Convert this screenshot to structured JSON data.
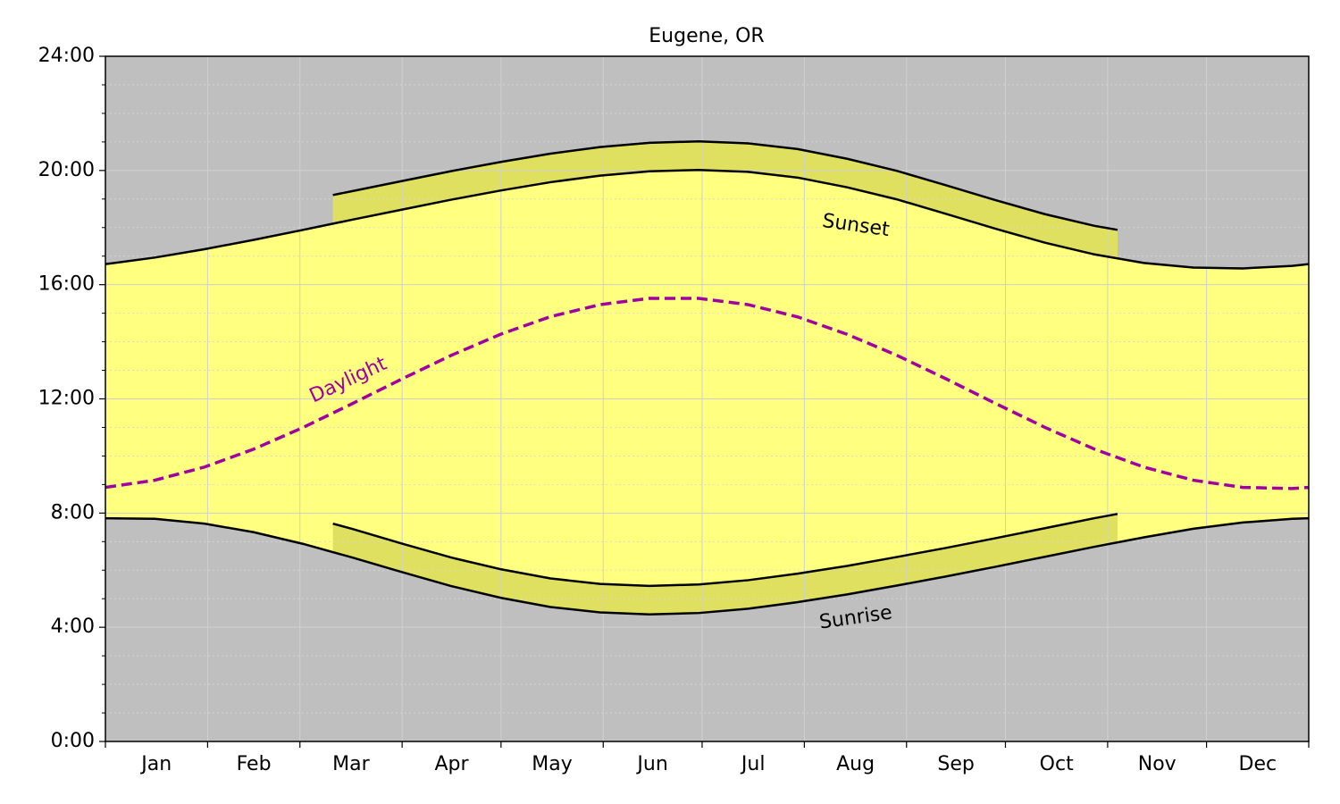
{
  "chart_data": {
    "type": "line",
    "title": "Eugene, OR",
    "x": [
      0,
      15,
      30,
      45,
      60,
      75,
      90,
      105,
      120,
      135,
      150,
      165,
      180,
      195,
      210,
      225,
      240,
      255,
      270,
      285,
      300,
      315,
      330,
      345,
      360,
      365
    ],
    "xlim": [
      0,
      365
    ],
    "xticks": [
      0,
      31,
      59,
      90,
      120,
      151,
      181,
      212,
      243,
      273,
      304,
      334,
      365
    ],
    "x_labels": [
      "Jan",
      "Feb",
      "Mar",
      "Apr",
      "May",
      "Jun",
      "Jul",
      "Aug",
      "Sep",
      "Oct",
      "Nov",
      "Dec"
    ],
    "ylim": [
      0,
      24
    ],
    "yticks": [
      {
        "value": 0,
        "label": "0:00"
      },
      {
        "value": 4,
        "label": "4:00"
      },
      {
        "value": 8,
        "label": "8:00"
      },
      {
        "value": 12,
        "label": "12:00"
      },
      {
        "value": 16,
        "label": "16:00"
      },
      {
        "value": 20,
        "label": "20:00"
      },
      {
        "value": 24,
        "label": "24:00"
      }
    ],
    "yminor_ticks": [
      1,
      2,
      3,
      5,
      6,
      7,
      9,
      10,
      11,
      13,
      14,
      15,
      17,
      18,
      19,
      21,
      22,
      23
    ],
    "grid": true,
    "background": "#bfbfbf",
    "fill_color": "#ffff80",
    "dst_fill_color": "#e0e060",
    "annotations": [
      "Sunset",
      "Sunrise",
      "Daylight"
    ],
    "series": [
      {
        "color": "#000000",
        "values": [
          7.82,
          7.8,
          7.63,
          7.33,
          6.92,
          6.44,
          5.93,
          5.44,
          5.03,
          4.71,
          4.52,
          4.45,
          4.5,
          4.65,
          4.88,
          5.15,
          5.46,
          5.78,
          6.12,
          6.47,
          6.82,
          7.15,
          7.45,
          7.67,
          7.8,
          7.82
        ]
      },
      {
        "color": "#000000",
        "values": [
          16.72,
          16.95,
          17.24,
          17.57,
          17.92,
          18.28,
          18.63,
          18.98,
          19.3,
          19.59,
          19.82,
          19.97,
          20.02,
          19.95,
          19.75,
          19.41,
          18.99,
          18.48,
          17.96,
          17.47,
          17.06,
          16.76,
          16.6,
          16.57,
          16.66,
          16.72
        ]
      },
      {
        "color": "#000000",
        "x": [
          69,
          75,
          90,
          105,
          120,
          135,
          150,
          165,
          180,
          195,
          210,
          225,
          240,
          255,
          270,
          285,
          300,
          307
        ],
        "values": [
          7.63,
          7.44,
          6.93,
          6.44,
          6.03,
          5.71,
          5.52,
          5.45,
          5.5,
          5.65,
          5.88,
          6.15,
          6.46,
          6.78,
          7.12,
          7.47,
          7.82,
          7.97
        ]
      },
      {
        "color": "#000000",
        "x": [
          69,
          75,
          90,
          105,
          120,
          135,
          150,
          165,
          180,
          195,
          210,
          225,
          240,
          255,
          270,
          285,
          300,
          307
        ],
        "values": [
          19.14,
          19.28,
          19.63,
          19.98,
          20.3,
          20.59,
          20.82,
          20.97,
          21.02,
          20.95,
          20.75,
          20.41,
          19.99,
          19.48,
          18.96,
          18.47,
          18.06,
          17.92
        ]
      },
      {
        "color": "#a000a0",
        "linestyle": "dashed",
        "values": [
          8.9,
          9.15,
          9.61,
          10.24,
          11.0,
          11.84,
          12.7,
          13.53,
          14.27,
          14.88,
          15.3,
          15.52,
          15.52,
          15.3,
          14.87,
          14.26,
          13.53,
          12.7,
          11.84,
          11.0,
          10.24,
          9.61,
          9.15,
          8.9,
          8.86,
          8.9
        ]
      }
    ]
  }
}
